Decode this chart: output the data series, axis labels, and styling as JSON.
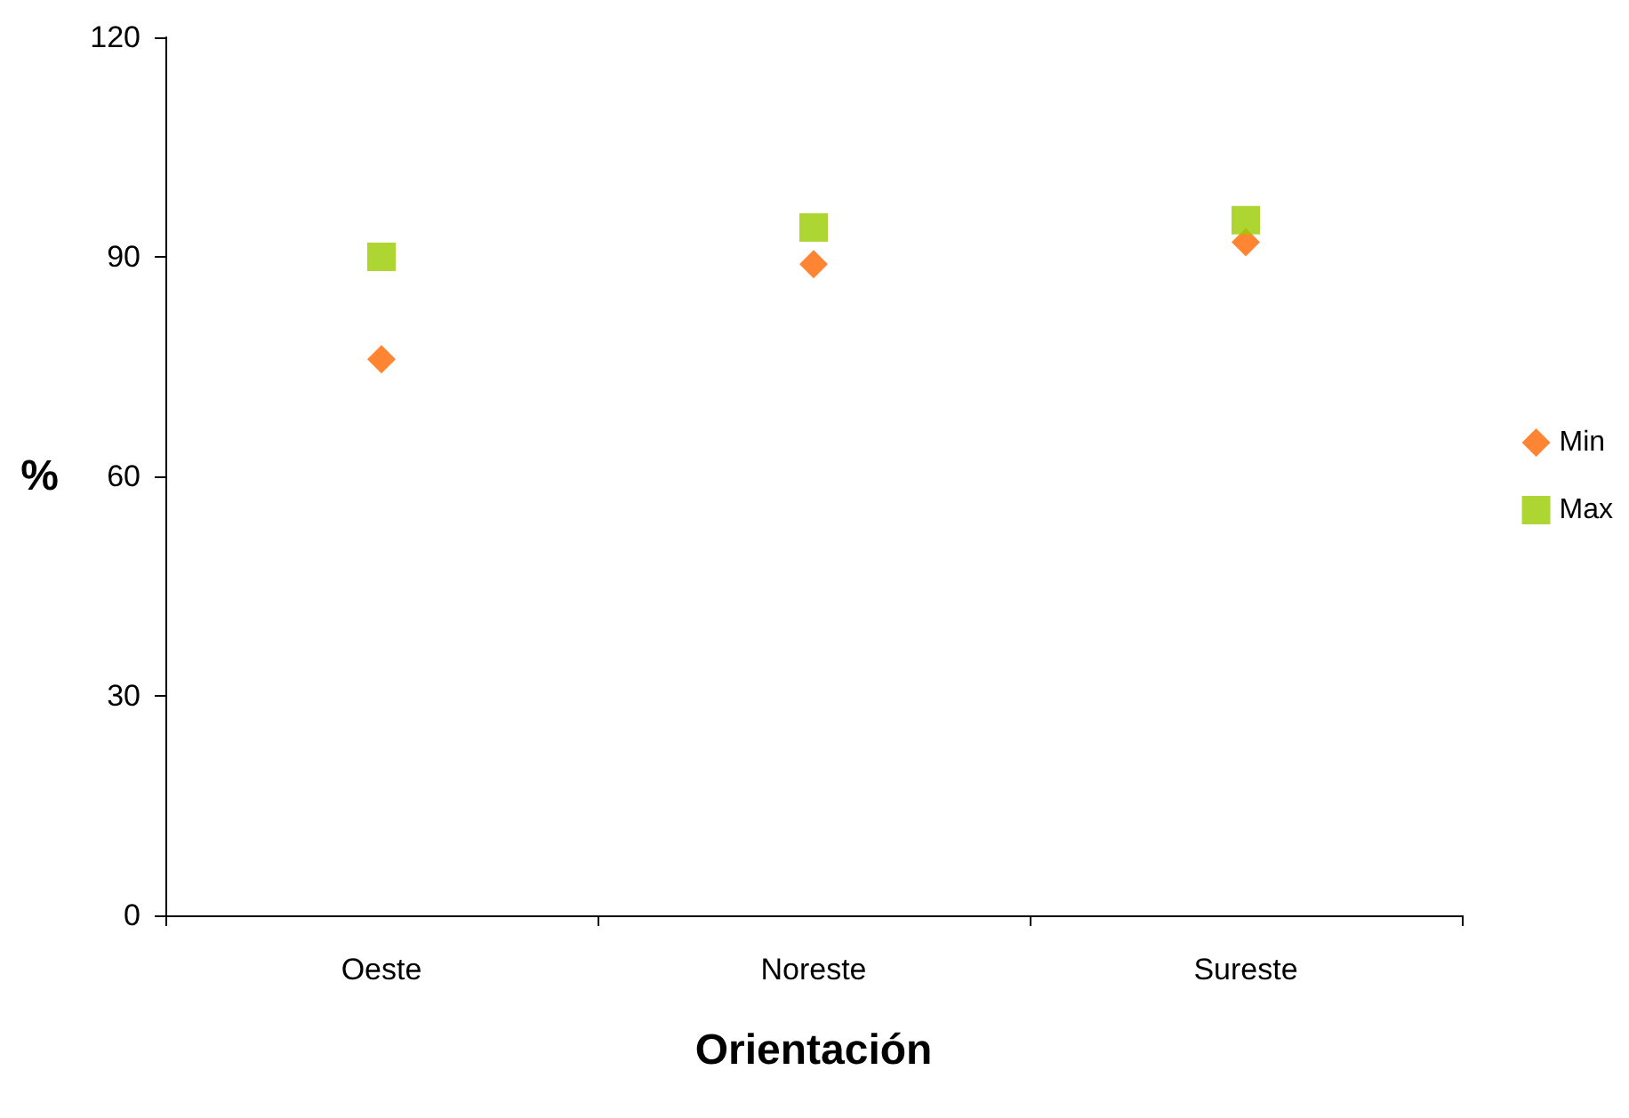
{
  "chart_data": {
    "type": "scatter",
    "xlabel": "Orientación",
    "ylabel": "%",
    "categories": [
      "Oeste",
      "Noreste",
      "Sureste"
    ],
    "series": [
      {
        "name": "Min",
        "color": "#ff6600",
        "marker": "diamond",
        "values": [
          76,
          89,
          92
        ]
      },
      {
        "name": "Max",
        "color": "#99cc00",
        "marker": "square",
        "values": [
          90,
          94,
          95
        ]
      }
    ],
    "ylim": [
      0,
      120
    ],
    "yticks": [
      0,
      30,
      60,
      90,
      120
    ],
    "grid": false,
    "legend": "right"
  }
}
